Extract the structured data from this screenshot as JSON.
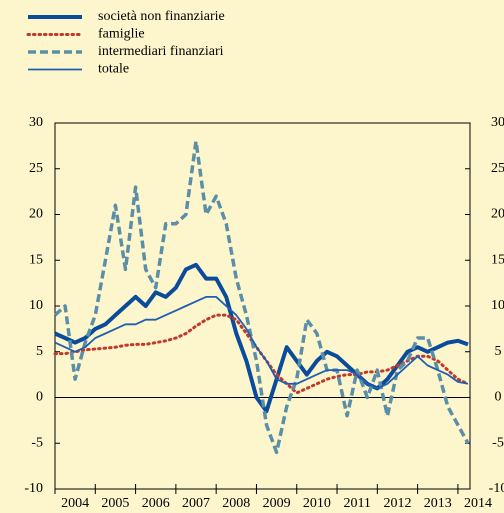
{
  "chart_data": {
    "type": "line",
    "x": [
      2004,
      2004.25,
      2004.5,
      2004.75,
      2005,
      2005.25,
      2005.5,
      2005.75,
      2006,
      2006.25,
      2006.5,
      2006.75,
      2007,
      2007.25,
      2007.5,
      2007.75,
      2008,
      2008.25,
      2008.5,
      2008.75,
      2009,
      2009.25,
      2009.5,
      2009.75,
      2010,
      2010.25,
      2010.5,
      2010.75,
      2011,
      2011.25,
      2011.5,
      2011.75,
      2012,
      2012.25,
      2012.5,
      2012.75,
      2013,
      2013.25,
      2013.5,
      2013.75,
      2014,
      2014.25
    ],
    "series": [
      {
        "name": "società non finanziarie",
        "color": "#0a4b9c",
        "width": 4,
        "dash": "solid",
        "values": [
          7,
          6.5,
          6,
          6.5,
          7.5,
          8,
          9,
          10,
          11,
          10,
          11.5,
          11,
          12,
          14,
          14.5,
          13,
          13,
          11,
          7,
          4,
          0,
          -1.5,
          2,
          5.5,
          4,
          2.5,
          4,
          5,
          4.5,
          3.5,
          2.5,
          1.5,
          1,
          2,
          3.5,
          5,
          5.5,
          5,
          5.5,
          6,
          6.2,
          5.8
        ]
      },
      {
        "name": "famiglie",
        "color": "#c0392b",
        "width": 3,
        "dash": "dotted",
        "values": [
          4.8,
          4.8,
          5,
          5.2,
          5.3,
          5.4,
          5.5,
          5.7,
          5.8,
          5.8,
          6,
          6.2,
          6.5,
          7,
          7.8,
          8.5,
          9,
          9,
          8.5,
          7,
          5.5,
          4,
          2.5,
          1.5,
          0.5,
          1,
          1.5,
          2,
          2.3,
          2.5,
          2.5,
          2.8,
          2.8,
          3,
          3.5,
          4,
          4.5,
          4.5,
          4,
          3,
          2,
          1.5
        ]
      },
      {
        "name": "intermediari finanziari",
        "color": "#5b8fa8",
        "width": 3.5,
        "dash": "dashed",
        "values": [
          9,
          10,
          2,
          6,
          9,
          15,
          21,
          14,
          23,
          14,
          12,
          19,
          19,
          20,
          28,
          20,
          22,
          19,
          13,
          9,
          4,
          -3,
          -6,
          -1,
          2,
          8.5,
          7,
          3,
          3,
          -2,
          3,
          0,
          3,
          -2,
          3,
          4,
          6.5,
          6.5,
          3,
          -1,
          -3,
          -5
        ]
      },
      {
        "name": "totale",
        "color": "#1f5fb0",
        "width": 1.8,
        "dash": "solid",
        "values": [
          6,
          5.5,
          5,
          5.5,
          6.5,
          7,
          7.5,
          8,
          8,
          8.5,
          8.5,
          9,
          9.5,
          10,
          10.5,
          11,
          11,
          10,
          9,
          7.5,
          5.5,
          4,
          2,
          1.5,
          1.5,
          2,
          2.5,
          3,
          3,
          3,
          2.5,
          1.5,
          1,
          1.5,
          2.5,
          3.5,
          4.5,
          3.5,
          3,
          2.5,
          1.7,
          1.5
        ]
      }
    ],
    "xlim": [
      2004,
      2014.3
    ],
    "xticks": [
      2004,
      2005,
      2006,
      2007,
      2008,
      2009,
      2010,
      2011,
      2012,
      2013,
      2014
    ],
    "ylim": [
      -10,
      30
    ],
    "yticks": [
      -10,
      -5,
      0,
      5,
      10,
      15,
      20,
      25,
      30
    ],
    "y2lim": [
      -10,
      30
    ],
    "y2ticks": [
      -10,
      -5,
      0,
      5,
      10,
      15,
      20,
      25,
      30
    ]
  }
}
